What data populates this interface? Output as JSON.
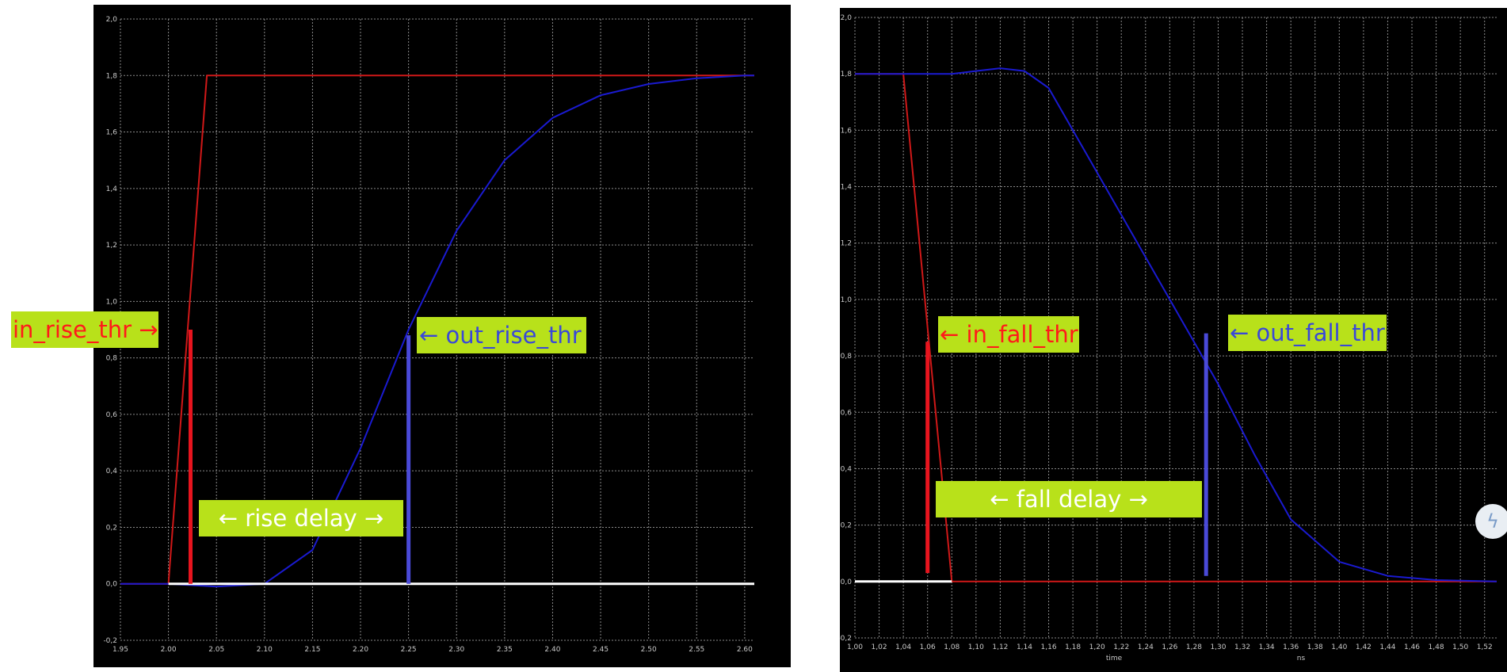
{
  "chart_data": [
    {
      "type": "line",
      "xlim": [
        1.95,
        2.61
      ],
      "ylim": [
        -0.2,
        2.0
      ],
      "grid": true,
      "x_ticks": [
        "1.95",
        "2.00",
        "2.05",
        "2.10",
        "2.15",
        "2.20",
        "2.25",
        "2.30",
        "2.35",
        "2.40",
        "2.45",
        "2.50",
        "2.55",
        "2.60"
      ],
      "y_ticks": [
        "-0,2",
        "0,0",
        "0,2",
        "0,4",
        "0,6",
        "0,8",
        "1,0",
        "1,2",
        "1,4",
        "1,6",
        "1,8",
        "2,0"
      ],
      "series": [
        {
          "color": "#d01818",
          "x": [
            1.95,
            2.0,
            2.04,
            2.61
          ],
          "y": [
            0.0,
            0.0,
            1.8,
            1.8
          ]
        },
        {
          "color": "#1a1ad0",
          "x": [
            1.95,
            2.0,
            2.05,
            2.1,
            2.15,
            2.2,
            2.25,
            2.3,
            2.35,
            2.4,
            2.45,
            2.5,
            2.55,
            2.6,
            2.61
          ],
          "y": [
            0.0,
            0.0,
            -0.01,
            0.0,
            0.12,
            0.48,
            0.9,
            1.25,
            1.5,
            1.65,
            1.73,
            1.77,
            1.79,
            1.8,
            1.8
          ]
        },
        {
          "color": "#ffffff",
          "x": [
            2.0,
            2.61
          ],
          "y": [
            0.0,
            0.0
          ]
        }
      ],
      "markers": [
        {
          "color": "#e8141e",
          "x": 2.023,
          "y0": 0.0,
          "y1": 0.9
        },
        {
          "color": "#4a4ad8",
          "x": 2.25,
          "y0": 0.0,
          "y1": 0.88
        }
      ]
    },
    {
      "type": "line",
      "xlim": [
        1.0,
        1.53
      ],
      "ylim": [
        -0.2,
        2.0
      ],
      "grid": true,
      "x_ticks": [
        "1,00",
        "1,02",
        "1,04",
        "1,06",
        "1,08",
        "1,10",
        "1,12",
        "1,14",
        "1,16",
        "1,18",
        "1,20",
        "1,22",
        "1,24",
        "1,26",
        "1,28",
        "1,30",
        "1,32",
        "1,34",
        "1,36",
        "1,38",
        "1,40",
        "1,42",
        "1,44",
        "1,46",
        "1,48",
        "1,50",
        "1,52"
      ],
      "y_ticks": [
        "-0,2",
        "0,0",
        "0,2",
        "0,4",
        "0,6",
        "0,8",
        "1,0",
        "1,2",
        "1,4",
        "1,6",
        "1,8",
        "2,0"
      ],
      "xlabel": "time",
      "xunit": "ns",
      "series": [
        {
          "color": "#d01818",
          "x": [
            1.0,
            1.04,
            1.08,
            1.53
          ],
          "y": [
            1.8,
            1.8,
            0.0,
            0.0
          ]
        },
        {
          "color": "#1a1ad0",
          "x": [
            1.0,
            1.05,
            1.08,
            1.1,
            1.12,
            1.14,
            1.16,
            1.2,
            1.24,
            1.28,
            1.3,
            1.33,
            1.36,
            1.4,
            1.44,
            1.48,
            1.53
          ],
          "y": [
            1.8,
            1.8,
            1.8,
            1.81,
            1.82,
            1.81,
            1.75,
            1.45,
            1.15,
            0.85,
            0.7,
            0.45,
            0.22,
            0.07,
            0.02,
            0.005,
            0.0
          ]
        },
        {
          "color": "#ffffff",
          "x": [
            1.0,
            1.08
          ],
          "y": [
            0.0,
            0.0
          ]
        }
      ],
      "markers": [
        {
          "color": "#e8141e",
          "x": 1.06,
          "y0": 0.03,
          "y1": 0.85
        },
        {
          "color": "#4a4ad8",
          "x": 1.29,
          "y0": 0.02,
          "y1": 0.88
        }
      ]
    }
  ],
  "annotations": {
    "in_rise_thr": "in_rise_thr →",
    "out_rise_thr": "← out_rise_thr",
    "rise_delay": "← rise delay →",
    "in_fall_thr": "← in_fall_thr",
    "out_fall_thr": "← out_fall_thr",
    "fall_delay": "← fall delay →"
  },
  "corner_icon": "bolt-logo-icon"
}
